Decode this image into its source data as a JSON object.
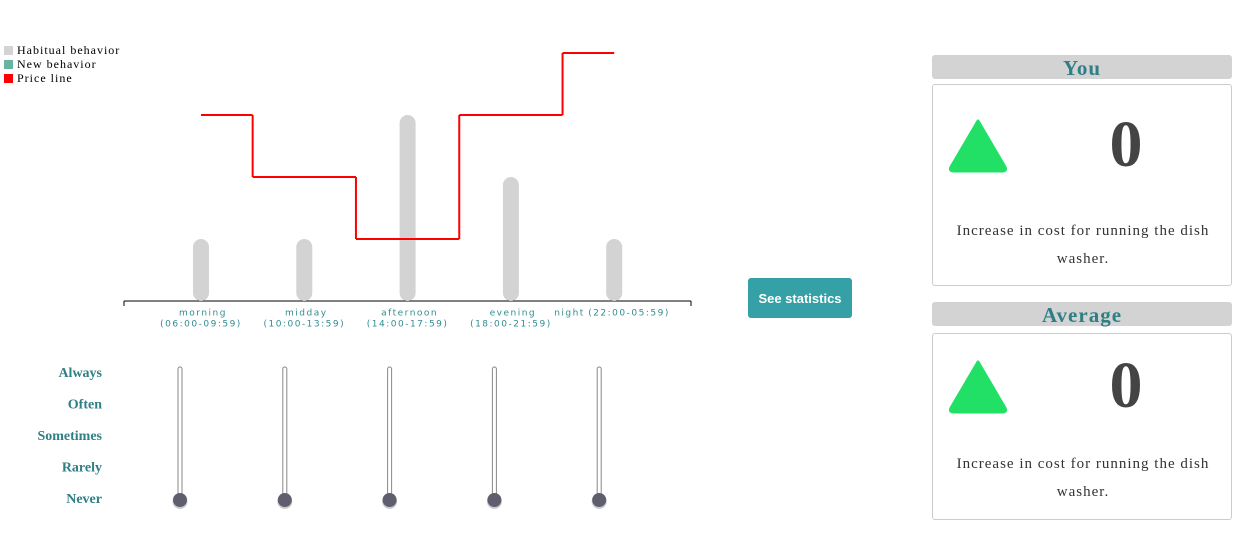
{
  "chart_data": {
    "type": "bar",
    "categories": [
      "morning",
      "midday",
      "afternoon",
      "evening",
      "night"
    ],
    "category_times": [
      "(06:00-09:59)",
      "(10:00-13:59)",
      "(14:00-17:59)",
      "(18:00-21:59)",
      "(22:00-05:59)"
    ],
    "series": [
      {
        "name": "Habitual behavior",
        "color": "#d3d3d3",
        "values": [
          1,
          1,
          3,
          2,
          1
        ]
      },
      {
        "name": "New behavior",
        "color": "#69b3a2",
        "values": [
          0,
          0,
          0,
          0,
          0
        ]
      }
    ],
    "price_line": {
      "name": "Price line",
      "color": "#ff0000",
      "values": [
        3,
        2,
        1,
        3,
        4
      ]
    },
    "ylim": [
      0,
      4
    ]
  },
  "sliders": {
    "levels": [
      "Always",
      "Often",
      "Sometimes",
      "Rarely",
      "Never"
    ],
    "values": [
      0,
      0,
      0,
      0,
      0
    ]
  },
  "button": "See statistics",
  "you": {
    "title": "You",
    "value": 0,
    "description": "Increase in cost for running the dish washer."
  },
  "average": {
    "title": "Average",
    "value": 0,
    "description": "Increase in cost for running the dish washer."
  }
}
